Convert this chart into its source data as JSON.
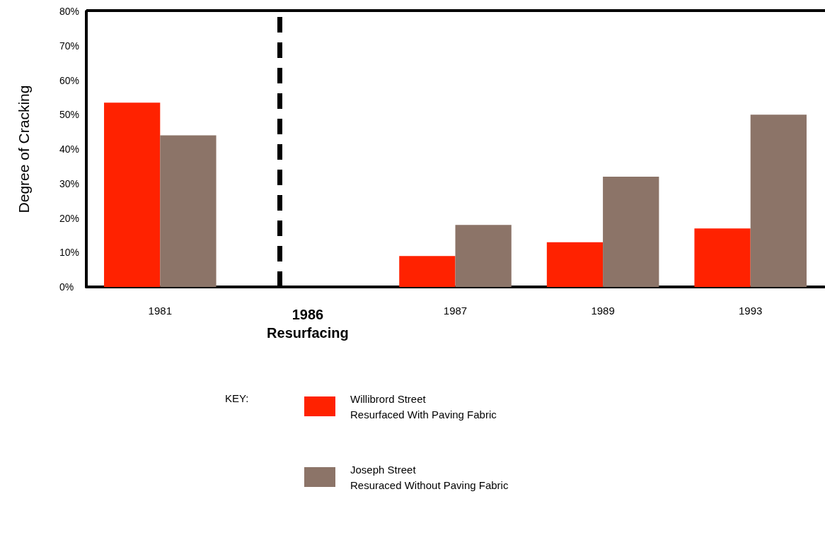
{
  "chart_data": {
    "type": "bar",
    "ylabel": "Degree of Cracking",
    "legend_title": "KEY:",
    "categories": [
      "1981",
      "1986",
      "1987",
      "1989",
      "1993"
    ],
    "series": [
      {
        "name": "Willibrord Street\nResurfaced With Paving Fabric",
        "color": "#ff2200",
        "values": [
          53.5,
          null,
          9,
          13,
          17
        ]
      },
      {
        "name": "Joseph Street\nResuraced Without Paving Fabric",
        "color": "#8c7468",
        "values": [
          44,
          null,
          18,
          32,
          50
        ]
      }
    ],
    "ylim": [
      0,
      80
    ],
    "yticks": [
      {
        "value": 0,
        "label": "0%"
      },
      {
        "value": 10,
        "label": "10%"
      },
      {
        "value": 20,
        "label": "20%"
      },
      {
        "value": 30,
        "label": "30%"
      },
      {
        "value": 40,
        "label": "40%"
      },
      {
        "value": 50,
        "label": "50%"
      },
      {
        "value": 60,
        "label": "60%"
      },
      {
        "value": 70,
        "label": "70%"
      },
      {
        "value": 80,
        "label": "80%"
      }
    ],
    "ref_lines": [
      {
        "axis": "x",
        "value": "1986",
        "label": "Resurfacing",
        "color": "#000000",
        "line_style": "dashed"
      }
    ],
    "grid": false,
    "legend": "bottom"
  }
}
